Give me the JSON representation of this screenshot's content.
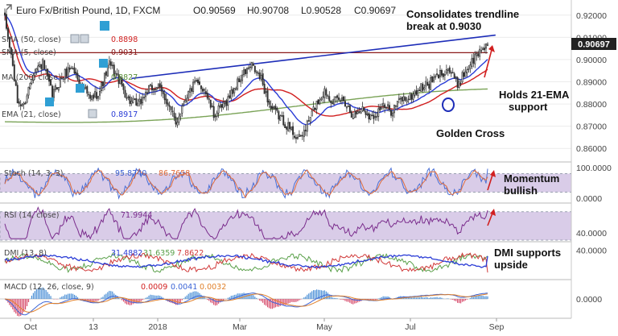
{
  "header": {
    "title": "Euro Fx/British Pound, 1D, FXCM",
    "open": "O0.90569",
    "high": "H0.90708",
    "low": "L0.90528",
    "close": "C0.90697"
  },
  "annotations": {
    "trendline_l1": "Consolidates trendline",
    "trendline_l2": "break at 0.9030",
    "ema_l1": "Holds 21-EMA",
    "ema_l2": "support",
    "golden_cross": "Golden Cross",
    "momentum_l1": "Momentum",
    "momentum_l2": "bullish",
    "dmi_l1": "DMI supports",
    "dmi_l2": "upside"
  },
  "colors": {
    "candle": "#333333",
    "ema21": "#2a3cd6",
    "sma50": "#d11f1f",
    "sma200": "#7aa357",
    "trendline": "#1d2db8",
    "hline": "#8b1a1a",
    "stoch_k": "#4a6fd6",
    "stoch_d": "#e06c3c",
    "rsi": "#7a2c8c",
    "dmi_adx": "#2a3cd6",
    "dmi_plus": "#5aa04a",
    "dmi_minus": "#d13a3a",
    "macd": "#3b64d6",
    "signal": "#e0802a",
    "arrow": "#d11f1f"
  },
  "chart_data": [
    {
      "type": "candlestick",
      "panel": "price",
      "x_labels": [
        "Oct",
        "13",
        "2018",
        "Mar",
        "May",
        "Jul",
        "Sep"
      ],
      "ylim": [
        0.855,
        0.925
      ],
      "y_ticks": [
        "0.92000",
        "0.91000",
        "0.90000",
        "0.89000",
        "0.88000",
        "0.87000",
        "0.86000"
      ],
      "last_price": "0.90697",
      "last_value": 0.90697,
      "close_anchors": [
        [
          0,
          0.918
        ],
        [
          4,
          0.902
        ],
        [
          8,
          0.881
        ],
        [
          12,
          0.879
        ],
        [
          18,
          0.895
        ],
        [
          24,
          0.898
        ],
        [
          30,
          0.884
        ],
        [
          36,
          0.892
        ],
        [
          42,
          0.897
        ],
        [
          48,
          0.889
        ],
        [
          54,
          0.882
        ],
        [
          60,
          0.886
        ],
        [
          66,
          0.898
        ],
        [
          72,
          0.891
        ],
        [
          78,
          0.882
        ],
        [
          84,
          0.879
        ],
        [
          90,
          0.886
        ],
        [
          96,
          0.888
        ],
        [
          102,
          0.882
        ],
        [
          108,
          0.871
        ],
        [
          114,
          0.883
        ],
        [
          120,
          0.889
        ],
        [
          126,
          0.887
        ],
        [
          132,
          0.875
        ],
        [
          138,
          0.879
        ],
        [
          144,
          0.886
        ],
        [
          150,
          0.893
        ],
        [
          156,
          0.897
        ],
        [
          162,
          0.891
        ],
        [
          168,
          0.878
        ],
        [
          174,
          0.874
        ],
        [
          180,
          0.869
        ],
        [
          186,
          0.864
        ],
        [
          190,
          0.869
        ],
        [
          196,
          0.879
        ],
        [
          202,
          0.886
        ],
        [
          208,
          0.881
        ],
        [
          214,
          0.882
        ],
        [
          220,
          0.875
        ],
        [
          226,
          0.878
        ],
        [
          232,
          0.874
        ],
        [
          238,
          0.879
        ],
        [
          244,
          0.877
        ],
        [
          250,
          0.882
        ],
        [
          256,
          0.883
        ],
        [
          262,
          0.887
        ],
        [
          268,
          0.889
        ],
        [
          274,
          0.893
        ],
        [
          280,
          0.896
        ],
        [
          286,
          0.889
        ],
        [
          292,
          0.896
        ],
        [
          298,
          0.902
        ],
        [
          304,
          0.907
        ]
      ],
      "series_labels": [
        {
          "name": "SMA (50, close)",
          "label": "SMA (50, close)",
          "value": "0.8898"
        },
        {
          "name": "SMA (5, close)",
          "label": "SMA (5, close)",
          "value": "0.9031"
        },
        {
          "name": "MA (200, close)",
          "label": "MA (200, close)",
          "value": "0.8827"
        },
        {
          "name": "EMA (21, close)",
          "label": "EMA (21, close)",
          "value": "0.8917"
        }
      ],
      "trendline": {
        "start": [
          80,
          0.8915
        ],
        "end": [
          310,
          0.911
        ]
      },
      "horizontal_line": 0.9031
    },
    {
      "type": "line",
      "panel": "stochastic",
      "label": "Stoch (14, 3, 3)",
      "values_text": [
        "95.8740",
        "86.7658"
      ],
      "series": [
        {
          "name": "%K",
          "last": 95.874
        },
        {
          "name": "%D",
          "last": 86.7658
        }
      ],
      "ylim": [
        -10,
        110
      ],
      "y_ticks": [
        "100.0000",
        "0.0000"
      ],
      "band": [
        20,
        80
      ]
    },
    {
      "type": "line",
      "panel": "rsi",
      "label": "RSI (14, close)",
      "values_text": [
        "71.9944"
      ],
      "series": [
        {
          "name": "RSI",
          "last": 71.9944
        }
      ],
      "ylim": [
        30,
        80
      ],
      "y_ticks": [
        "40.0000"
      ],
      "band": [
        30,
        70
      ]
    },
    {
      "type": "line",
      "panel": "dmi",
      "label": "DMI (13, 8)",
      "values_text": [
        "31.4882",
        "31.6359",
        "7.8622"
      ],
      "series": [
        {
          "name": "ADX",
          "last": 31.4882
        },
        {
          "name": "+DI",
          "last": 31.6359
        },
        {
          "name": "-DI",
          "last": 7.8622
        }
      ],
      "ylim": [
        0,
        50
      ],
      "y_ticks": [
        "40.0000"
      ]
    },
    {
      "type": "line",
      "panel": "macd",
      "label": "MACD (12, 26, close, 9)",
      "values_text": [
        "0.0009",
        "0.0041",
        "0.0032"
      ],
      "series": [
        {
          "name": "Histogram",
          "last": 0.0009
        },
        {
          "name": "MACD",
          "last": 0.0041
        },
        {
          "name": "Signal",
          "last": 0.0032
        }
      ],
      "ylim": [
        -0.012,
        0.012
      ],
      "y_ticks": [
        "0.0000"
      ]
    }
  ]
}
